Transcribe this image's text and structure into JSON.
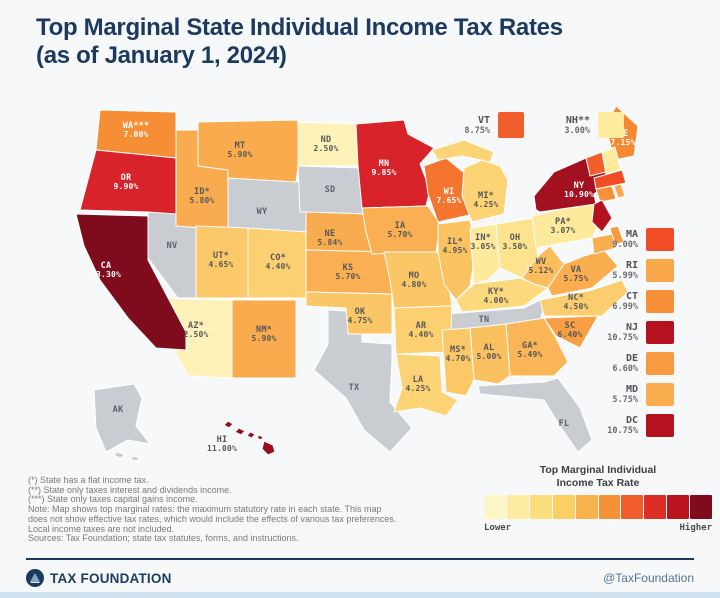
{
  "header": {
    "title_line1": "Top Marginal State Individual Income Tax Rates",
    "title_line2": "(as of January 1, 2024)"
  },
  "map": {
    "states": [
      {
        "abbr": "NV",
        "label": "NV",
        "rate": "",
        "color": "#C9CDD2"
      },
      {
        "abbr": "WY",
        "label": "WY",
        "rate": "",
        "color": "#C9CDD2"
      },
      {
        "abbr": "SD",
        "label": "SD",
        "rate": "",
        "color": "#C9CDD2"
      },
      {
        "abbr": "TX",
        "label": "TX",
        "rate": "",
        "color": "#C9CDD2"
      },
      {
        "abbr": "TN",
        "label": "TN",
        "rate": "",
        "color": "#C9CDD2"
      },
      {
        "abbr": "FL",
        "label": "FL",
        "rate": "",
        "color": "#C9CDD2"
      },
      {
        "abbr": "AK",
        "label": "AK",
        "rate": "",
        "color": "#C9CDD2"
      },
      {
        "abbr": "WA",
        "label": "WA***",
        "rate": "7.00%",
        "color": "#F68E36",
        "text": "light"
      },
      {
        "abbr": "OR",
        "label": "OR",
        "rate": "9.90%",
        "color": "#D8232A",
        "text": "light"
      },
      {
        "abbr": "ID",
        "label": "ID*",
        "rate": "5.80%",
        "color": "#F9AC4F"
      },
      {
        "abbr": "MT",
        "label": "MT",
        "rate": "5.90%",
        "color": "#F9AB4E"
      },
      {
        "abbr": "ND",
        "label": "ND",
        "rate": "2.50%",
        "color": "#FEF2B8"
      },
      {
        "abbr": "UT",
        "label": "UT*",
        "rate": "4.65%",
        "color": "#FBC969"
      },
      {
        "abbr": "CO",
        "label": "CO*",
        "rate": "4.40%",
        "color": "#FCCF71"
      },
      {
        "abbr": "AZ",
        "label": "AZ*",
        "rate": "2.50%",
        "color": "#FEF2B8"
      },
      {
        "abbr": "NM",
        "label": "NM*",
        "rate": "5.90%",
        "color": "#F9AB4E"
      },
      {
        "abbr": "NE",
        "label": "NE",
        "rate": "5.84%",
        "color": "#F9AC4F"
      },
      {
        "abbr": "KS",
        "label": "KS",
        "rate": "5.70%",
        "color": "#FAB052"
      },
      {
        "abbr": "OK",
        "label": "OK",
        "rate": "4.75%",
        "color": "#FBC766"
      },
      {
        "abbr": "MN",
        "label": "MN",
        "rate": "9.85%",
        "color": "#D8232A",
        "text": "light"
      },
      {
        "abbr": "IA",
        "label": "IA",
        "rate": "5.70%",
        "color": "#FAB052"
      },
      {
        "abbr": "MO",
        "label": "MO",
        "rate": "4.80%",
        "color": "#FBC665"
      },
      {
        "abbr": "AR",
        "label": "AR",
        "rate": "4.40%",
        "color": "#FCCF71"
      },
      {
        "abbr": "LA",
        "label": "LA",
        "rate": "4.25%",
        "color": "#FCD375"
      },
      {
        "abbr": "WI",
        "label": "WI",
        "rate": "7.65%",
        "color": "#F3752E",
        "text": "light"
      },
      {
        "abbr": "MI",
        "label": "MI*",
        "rate": "4.25%",
        "color": "#FCD375"
      },
      {
        "abbr": "IL",
        "label": "IL*",
        "rate": "4.95%",
        "color": "#FBC261"
      },
      {
        "abbr": "IN",
        "label": "IN*",
        "rate": "3.05%",
        "color": "#FDEA9C"
      },
      {
        "abbr": "OH",
        "label": "OH",
        "rate": "3.50%",
        "color": "#FDE38E"
      },
      {
        "abbr": "KY",
        "label": "KY*",
        "rate": "4.00%",
        "color": "#FCD97C"
      },
      {
        "abbr": "WV",
        "label": "WV",
        "rate": "5.12%",
        "color": "#FBBD5D"
      },
      {
        "abbr": "VA",
        "label": "VA",
        "rate": "5.75%",
        "color": "#FAAE50"
      },
      {
        "abbr": "NC",
        "label": "NC*",
        "rate": "4.50%",
        "color": "#FCCD6E"
      },
      {
        "abbr": "SC",
        "label": "SC",
        "rate": "6.40%",
        "color": "#F89F44"
      },
      {
        "abbr": "GA",
        "label": "GA*",
        "rate": "5.49%",
        "color": "#FAB557"
      },
      {
        "abbr": "AL",
        "label": "AL",
        "rate": "5.00%",
        "color": "#FBC05F"
      },
      {
        "abbr": "MS",
        "label": "MS*",
        "rate": "4.70%",
        "color": "#FBC867"
      },
      {
        "abbr": "PA",
        "label": "PA*",
        "rate": "3.07%",
        "color": "#FDEA9B"
      },
      {
        "abbr": "NY",
        "label": "NY",
        "rate": "10.90%",
        "color": "#A31120",
        "text": "light"
      },
      {
        "abbr": "ME",
        "label": "ME",
        "rate": "7.15%",
        "color": "#F58932",
        "text": "light"
      },
      {
        "abbr": "VT",
        "label": "",
        "rate": "",
        "color": "#F15E2B"
      },
      {
        "abbr": "NH",
        "label": "",
        "rate": "",
        "color": "#FDEB9E"
      },
      {
        "abbr": "MA",
        "label": "",
        "rate": "",
        "color": "#EF4C27"
      },
      {
        "abbr": "CT",
        "label": "",
        "rate": "",
        "color": "#F69138"
      },
      {
        "abbr": "RI",
        "label": "",
        "rate": "",
        "color": "#F9A94C"
      },
      {
        "abbr": "NJ",
        "label": "",
        "rate": "",
        "color": "#B5121F"
      },
      {
        "abbr": "DE",
        "label": "",
        "rate": "",
        "color": "#F89B40"
      },
      {
        "abbr": "MD",
        "label": "",
        "rate": "",
        "color": "#FAAE50"
      },
      {
        "abbr": "CA",
        "label": "CA",
        "rate": "13.30%",
        "color": "#7E0C1D",
        "text": "light"
      },
      {
        "abbr": "HI",
        "label": "HI",
        "rate": "11.00%",
        "color": "#98101E"
      }
    ],
    "callouts_top": [
      {
        "abbr": "VT",
        "label": "VT",
        "rate": "8.75%",
        "color": "#F15E2B"
      },
      {
        "abbr": "NH",
        "label": "NH**",
        "rate": "3.00%",
        "color": "#FDEB9E"
      }
    ],
    "callouts_east": [
      {
        "abbr": "MA",
        "label": "MA",
        "rate": "9.00%",
        "color": "#EF4C27"
      },
      {
        "abbr": "RI",
        "label": "RI",
        "rate": "5.99%",
        "color": "#F9A94C"
      },
      {
        "abbr": "CT",
        "label": "CT",
        "rate": "6.99%",
        "color": "#F69138"
      },
      {
        "abbr": "NJ",
        "label": "NJ",
        "rate": "10.75%",
        "color": "#B5121F"
      },
      {
        "abbr": "DE",
        "label": "DE",
        "rate": "6.60%",
        "color": "#F89B40"
      },
      {
        "abbr": "MD",
        "label": "MD",
        "rate": "5.75%",
        "color": "#FAAE50"
      },
      {
        "abbr": "DC",
        "label": "DC",
        "rate": "10.75%",
        "color": "#B5121F"
      }
    ]
  },
  "legend": {
    "title_line1": "Top Marginal Individual",
    "title_line2": "Income Tax Rate",
    "lower": "Lower",
    "higher": "Higher",
    "colors": [
      "#FDF6C6",
      "#FCECA0",
      "#FBDF7E",
      "#FACF63",
      "#F8B24D",
      "#F59238",
      "#F15E2B",
      "#DD2E26",
      "#BA141F",
      "#7E0C1D"
    ]
  },
  "footnotes": [
    "(*) State has a flat income tax.",
    "(**) State only taxes interest and dividends income.",
    "(***) State only taxes capital gains income.",
    "Note: Map shows top marginal rates: the maximum statutory rate in each state. This map",
    "does not show effective tax rates, which would include the effects of various tax preferences.",
    "Local income taxes are not included.",
    "Sources: Tax Foundation; state tax statutes, forms, and instructions."
  ],
  "footer": {
    "brand": "TAX FOUNDATION",
    "handle": "@TaxFoundation"
  },
  "chart_data": {
    "type": "heatmap",
    "title": "Top Marginal State Individual Income Tax Rates (as of January 1, 2024)",
    "unit": "percent",
    "legend": {
      "low_label": "Lower",
      "high_label": "Higher"
    },
    "no_income_tax_states": [
      "AK",
      "FL",
      "NV",
      "SD",
      "TN",
      "TX",
      "WY"
    ],
    "values": {
      "AL": 5.0,
      "AZ": 2.5,
      "AR": 4.4,
      "CA": 13.3,
      "CO": 4.4,
      "CT": 6.99,
      "DE": 6.6,
      "DC": 10.75,
      "GA": 5.49,
      "HI": 11.0,
      "ID": 5.8,
      "IL": 4.95,
      "IN": 3.05,
      "IA": 5.7,
      "KS": 5.7,
      "KY": 4.0,
      "LA": 4.25,
      "ME": 7.15,
      "MD": 5.75,
      "MA": 9.0,
      "MI": 4.25,
      "MN": 9.85,
      "MS": 4.7,
      "MO": 4.8,
      "MT": 5.9,
      "NE": 5.84,
      "NH": 3.0,
      "NJ": 10.75,
      "NM": 5.9,
      "NY": 10.9,
      "NC": 4.5,
      "ND": 2.5,
      "OH": 3.5,
      "OK": 4.75,
      "OR": 9.9,
      "PA": 3.07,
      "RI": 5.99,
      "SC": 6.4,
      "UT": 4.65,
      "VT": 8.75,
      "VA": 5.75,
      "WA": 7.0,
      "WV": 5.12,
      "WI": 7.65
    }
  }
}
